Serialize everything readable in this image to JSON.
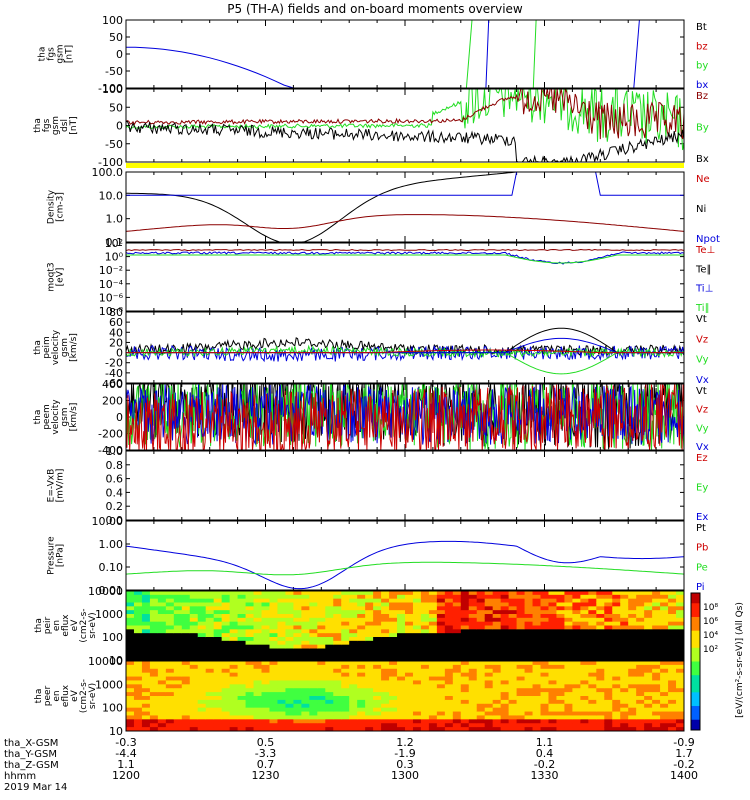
{
  "title": "P5 (TH-A) fields and on-board moments overview",
  "colors": {
    "black": "#000000",
    "red": "#cc0000",
    "darkred": "#8b0000",
    "green": "#22dd22",
    "blue": "#0000dd",
    "yellow": "#ffff00"
  },
  "chart_data": {
    "type": "line",
    "time_ticks": [
      "1200",
      "1230",
      "1300",
      "1330",
      "1400"
    ],
    "ephemeris": {
      "labels": [
        "tha_X-GSM",
        "tha_Y-GSM",
        "tha_Z-GSM",
        "hhmm",
        "2019 Mar 14"
      ],
      "X": [
        "-0.3",
        "0.5",
        "1.2",
        "1.1",
        "-0.9"
      ],
      "Y": [
        "-4.4",
        "-3.3",
        "-1.9",
        "0.4",
        "1.7"
      ],
      "Z": [
        "1.1",
        "0.7",
        "0.3",
        "-0.2",
        "-0.2"
      ]
    },
    "panels": [
      {
        "id": "fgs",
        "ylabel": [
          "tha",
          "fgs",
          "gsm",
          "[nT]"
        ],
        "scale": "linear",
        "yrange": [
          -100,
          100
        ],
        "yticks": [
          "100",
          "50",
          "0",
          "-50",
          "-100"
        ],
        "legend": [
          "Bt",
          "bz",
          "by",
          "bx"
        ],
        "legend_colors": [
          "black",
          "red",
          "green",
          "blue"
        ]
      },
      {
        "id": "fgs_dsl",
        "ylabel": [
          "tha",
          "fgs",
          "gsm",
          "dsl",
          "[nT]"
        ],
        "scale": "linear",
        "yrange": [
          -120,
          120
        ],
        "yticks": [
          "100",
          "50",
          "0",
          "-50",
          "-100"
        ],
        "legend": [
          "Bz",
          "By",
          "Bx"
        ],
        "legend_colors": [
          "darkred",
          "green",
          "black"
        ]
      },
      {
        "id": "density",
        "ylabel": [
          "Density",
          "[cm-3]"
        ],
        "scale": "log",
        "yrange": [
          0.1,
          200
        ],
        "yticks": [
          "100.0",
          "10.0",
          "1.0",
          "0.1"
        ],
        "legend": [
          "Ne",
          "Ni",
          "Npot"
        ],
        "legend_colors": [
          "red",
          "black",
          "blue"
        ]
      },
      {
        "id": "temp",
        "ylabel": [
          "moqt3",
          "[eV]"
        ],
        "scale": "log",
        "yrange": [
          1e-08,
          10000.0
        ],
        "yticks": [
          "10²",
          "10⁰",
          "10⁻²",
          "10⁻⁴",
          "10⁻⁶",
          "10⁻⁸"
        ],
        "legend": [
          "Te⊥",
          "Te∥",
          "Ti⊥",
          "Ti∥"
        ],
        "legend_colors": [
          "red",
          "black",
          "blue",
          "green"
        ]
      },
      {
        "id": "peim",
        "ylabel": [
          "tha",
          "peim",
          "velocity",
          "gsm",
          "[km/s]"
        ],
        "scale": "linear",
        "yrange": [
          -60,
          80
        ],
        "yticks": [
          "80",
          "60",
          "40",
          "20",
          "0",
          "-20",
          "-40",
          "-60"
        ],
        "legend": [
          "Vt",
          "Vz",
          "Vy",
          "Vx"
        ],
        "legend_colors": [
          "black",
          "red",
          "green",
          "blue"
        ]
      },
      {
        "id": "peem",
        "ylabel": [
          "tha",
          "peem",
          "velocity",
          "gsm",
          "[km/s]"
        ],
        "scale": "linear",
        "yrange": [
          -400,
          400
        ],
        "yticks": [
          "400",
          "200",
          "0",
          "-200",
          "-400"
        ],
        "legend": [
          "Vt",
          "Vz",
          "Vy",
          "Vx"
        ],
        "legend_colors": [
          "black",
          "red",
          "green",
          "blue"
        ]
      },
      {
        "id": "efield",
        "ylabel": [
          "E=-VxB",
          "[mV/m]"
        ],
        "scale": "linear",
        "yrange": [
          0,
          1
        ],
        "yticks": [
          "1.0",
          "0.8",
          "0.6",
          "0.4",
          "0.2",
          "0.0"
        ],
        "legend": [
          "Ez",
          "Ey",
          "Ex"
        ],
        "legend_colors": [
          "red",
          "green",
          "blue"
        ]
      },
      {
        "id": "pressure",
        "ylabel": [
          "Pressure",
          "[nPa]"
        ],
        "scale": "log",
        "yrange": [
          0.003,
          30
        ],
        "yticks": [
          "10.00",
          "1.00",
          "0.10",
          "0.01"
        ],
        "legend": [
          "Pt",
          "Pb",
          "Pe",
          "Pi"
        ],
        "legend_colors": [
          "black",
          "red",
          "green",
          "blue"
        ]
      },
      {
        "id": "peir",
        "ylabel": [
          "tha",
          "peir",
          "en",
          "eflux",
          "eV",
          "(cm2-s-",
          "sr-eV)"
        ],
        "scale": "log",
        "yticks": [
          "10000",
          "1000",
          "100",
          "10"
        ],
        "type": "heatmap"
      },
      {
        "id": "peer",
        "ylabel": [
          "tha",
          "peer",
          "en",
          "eflux",
          "eV",
          "(cm2-s-",
          "sr-eV)"
        ],
        "scale": "log",
        "yticks": [
          "10000",
          "1000",
          "100",
          "10"
        ],
        "type": "heatmap"
      }
    ],
    "colorbar": {
      "label": "[eV/(cm²-s-sr-eV)] (All Qs)",
      "ticks_top": [
        "10⁸",
        "10⁶",
        "10⁴",
        "10²"
      ],
      "ticks_bottom": [
        "10⁸",
        "10⁶",
        "10⁵",
        "10⁴",
        "10³",
        "10²"
      ]
    }
  }
}
